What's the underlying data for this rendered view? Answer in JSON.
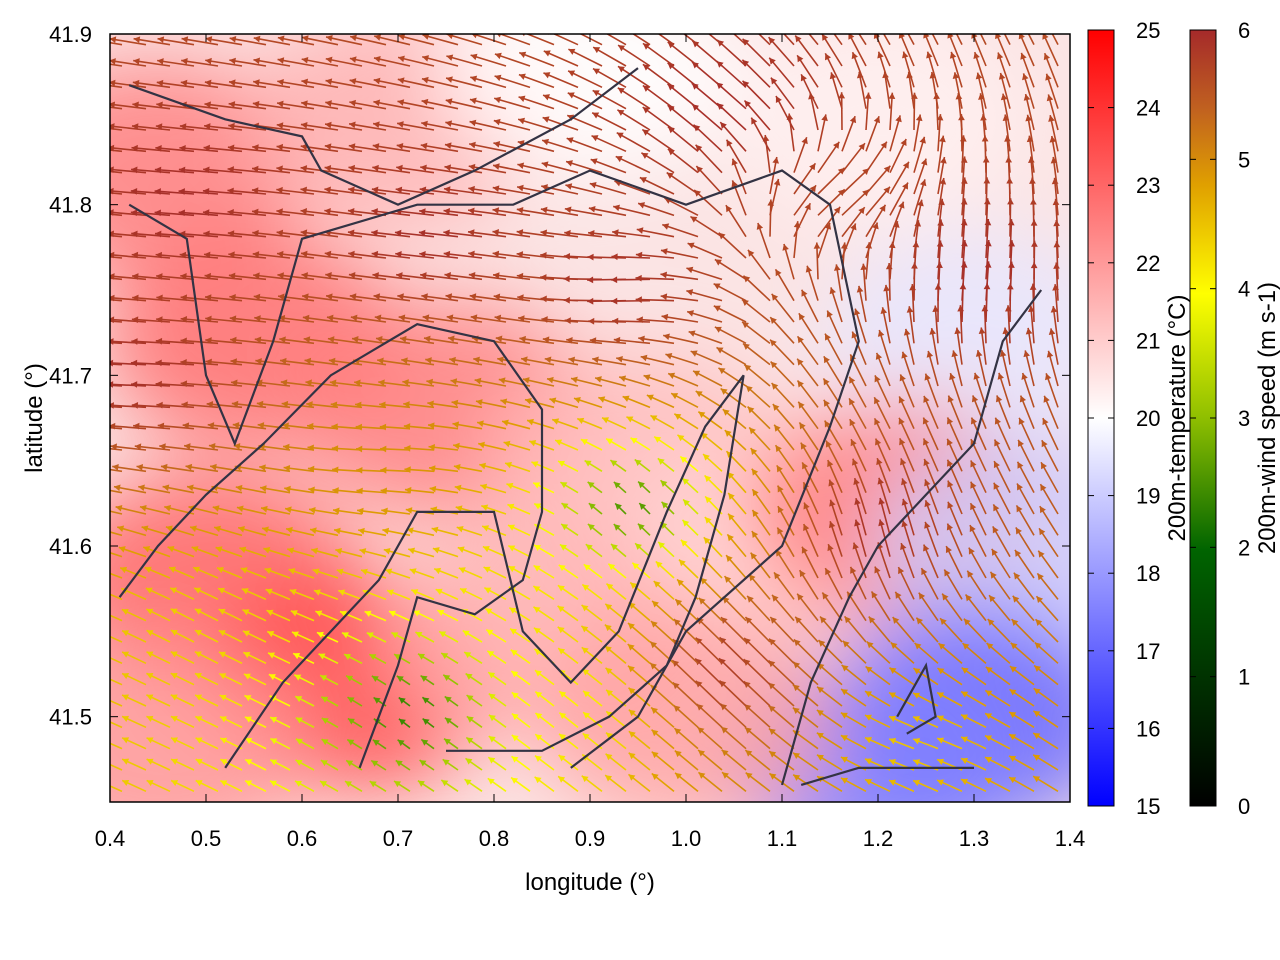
{
  "chart_data": {
    "type": "heatmap",
    "overlay": "wind-vector-field",
    "xlabel": "longitude (°)",
    "ylabel": "latitude (°)",
    "xlim": [
      0.4,
      1.4
    ],
    "ylim": [
      41.45,
      41.9
    ],
    "xticks": [
      "0.4",
      "0.5",
      "0.6",
      "0.7",
      "0.8",
      "0.9",
      "1.0",
      "1.1",
      "1.2",
      "1.3",
      "1.4"
    ],
    "yticks": [
      "41.5",
      "41.6",
      "41.7",
      "41.8",
      "41.9"
    ],
    "colorbar_temperature": {
      "label": "200m-temperature (°C)",
      "range": [
        15,
        25
      ],
      "ticks": [
        "15",
        "16",
        "17",
        "18",
        "19",
        "20",
        "21",
        "22",
        "23",
        "24",
        "25"
      ],
      "colors": [
        "#0000ff",
        "#ffffff",
        "#ff0000"
      ]
    },
    "colorbar_wind": {
      "label": "200m-wind speed (m s-1)",
      "range": [
        0,
        6
      ],
      "ticks": [
        "0",
        "1",
        "2",
        "3",
        "4",
        "5",
        "6"
      ],
      "colors": [
        "#000000",
        "#006400",
        "#8fbf00",
        "#ffff00",
        "#e0a000",
        "#c06020",
        "#a52a2a"
      ]
    },
    "temperature_regions": [
      {
        "lon": 0.45,
        "lat": 41.82,
        "t": 22.5
      },
      {
        "lon": 0.7,
        "lat": 41.85,
        "t": 21.5
      },
      {
        "lon": 0.9,
        "lat": 41.88,
        "t": 20.0
      },
      {
        "lon": 1.2,
        "lat": 41.85,
        "t": 20.3
      },
      {
        "lon": 1.3,
        "lat": 41.72,
        "t": 19.5
      },
      {
        "lon": 0.55,
        "lat": 41.72,
        "t": 22.8
      },
      {
        "lon": 0.75,
        "lat": 41.68,
        "t": 22.5
      },
      {
        "lon": 0.95,
        "lat": 41.65,
        "t": 21.3
      },
      {
        "lon": 1.1,
        "lat": 41.6,
        "t": 20.8
      },
      {
        "lon": 1.22,
        "lat": 41.62,
        "t": 22.5
      },
      {
        "lon": 1.35,
        "lat": 41.6,
        "t": 19.0
      },
      {
        "lon": 1.3,
        "lat": 41.5,
        "t": 17.0
      },
      {
        "lon": 1.2,
        "lat": 41.47,
        "t": 17.5
      },
      {
        "lon": 0.5,
        "lat": 41.58,
        "t": 23.0
      },
      {
        "lon": 0.65,
        "lat": 41.52,
        "t": 23.5
      },
      {
        "lon": 0.85,
        "lat": 41.55,
        "t": 21.5
      },
      {
        "lon": 1.0,
        "lat": 41.5,
        "t": 21.8
      },
      {
        "lon": 0.45,
        "lat": 41.48,
        "t": 22.0
      }
    ],
    "wind_regions": [
      {
        "lon": 0.5,
        "lat": 41.8,
        "u": -3.0,
        "v": 0.2,
        "speed": 6
      },
      {
        "lon": 0.75,
        "lat": 41.78,
        "u": -3.0,
        "v": 0.3,
        "speed": 6
      },
      {
        "lon": 0.95,
        "lat": 41.75,
        "u": -2.6,
        "v": -0.2,
        "speed": 6
      },
      {
        "lon": 1.15,
        "lat": 41.8,
        "u": 1.5,
        "v": 1.0,
        "speed": 5.5
      },
      {
        "lon": 1.3,
        "lat": 41.75,
        "u": 0.2,
        "v": 2.0,
        "speed": 6
      },
      {
        "lon": 1.05,
        "lat": 41.85,
        "u": -1.0,
        "v": 0.8,
        "speed": 6
      },
      {
        "lon": 0.7,
        "lat": 41.65,
        "u": -2.0,
        "v": 0.0,
        "speed": 4.2
      },
      {
        "lon": 0.95,
        "lat": 41.62,
        "u": -0.3,
        "v": 0.4,
        "speed": 1.0
      },
      {
        "lon": 0.72,
        "lat": 41.5,
        "u": -0.2,
        "v": 0.2,
        "speed": 1.0
      },
      {
        "lon": 0.5,
        "lat": 41.55,
        "u": -1.5,
        "v": 0.8,
        "speed": 3.5
      },
      {
        "lon": 1.2,
        "lat": 41.6,
        "u": -0.4,
        "v": 2.0,
        "speed": 6
      },
      {
        "lon": 1.05,
        "lat": 41.52,
        "u": -1.5,
        "v": 1.5,
        "speed": 6
      },
      {
        "lon": 1.25,
        "lat": 41.48,
        "u": -1.5,
        "v": 0.5,
        "speed": 3.5
      },
      {
        "lon": 0.9,
        "lat": 41.5,
        "u": -1.0,
        "v": 0.8,
        "speed": 3.0
      },
      {
        "lon": 0.45,
        "lat": 41.7,
        "u": -3.0,
        "v": 0.1,
        "speed": 6
      }
    ],
    "contours": [
      [
        [
          0.42,
          41.87
        ],
        [
          0.52,
          41.85
        ],
        [
          0.6,
          41.84
        ],
        [
          0.62,
          41.82
        ],
        [
          0.7,
          41.8
        ],
        [
          0.78,
          41.82
        ],
        [
          0.88,
          41.85
        ],
        [
          0.95,
          41.88
        ]
      ],
      [
        [
          0.42,
          41.8
        ],
        [
          0.48,
          41.78
        ],
        [
          0.5,
          41.7
        ],
        [
          0.53,
          41.66
        ],
        [
          0.57,
          41.72
        ],
        [
          0.6,
          41.78
        ],
        [
          0.72,
          41.8
        ],
        [
          0.82,
          41.8
        ],
        [
          0.9,
          41.82
        ],
        [
          1.0,
          41.8
        ],
        [
          1.1,
          41.82
        ],
        [
          1.15,
          41.8
        ],
        [
          1.18,
          41.72
        ],
        [
          1.15,
          41.67
        ],
        [
          1.1,
          41.6
        ],
        [
          1.0,
          41.55
        ],
        [
          0.95,
          41.5
        ],
        [
          0.88,
          41.47
        ]
      ],
      [
        [
          0.41,
          41.57
        ],
        [
          0.45,
          41.6
        ],
        [
          0.5,
          41.63
        ],
        [
          0.56,
          41.66
        ],
        [
          0.63,
          41.7
        ],
        [
          0.72,
          41.73
        ],
        [
          0.8,
          41.72
        ],
        [
          0.85,
          41.68
        ],
        [
          0.85,
          41.62
        ],
        [
          0.83,
          41.58
        ],
        [
          0.78,
          41.56
        ],
        [
          0.72,
          41.57
        ],
        [
          0.7,
          41.53
        ],
        [
          0.66,
          41.47
        ]
      ],
      [
        [
          0.52,
          41.47
        ],
        [
          0.58,
          41.52
        ],
        [
          0.63,
          41.55
        ],
        [
          0.68,
          41.58
        ],
        [
          0.72,
          41.62
        ],
        [
          0.8,
          41.62
        ],
        [
          0.83,
          41.55
        ],
        [
          0.88,
          41.52
        ],
        [
          0.93,
          41.55
        ],
        [
          0.98,
          41.62
        ],
        [
          1.02,
          41.67
        ],
        [
          1.06,
          41.7
        ],
        [
          1.04,
          41.63
        ],
        [
          1.01,
          41.57
        ],
        [
          0.98,
          41.53
        ],
        [
          0.92,
          41.5
        ],
        [
          0.85,
          41.48
        ],
        [
          0.75,
          41.48
        ]
      ],
      [
        [
          1.1,
          41.46
        ],
        [
          1.13,
          41.52
        ],
        [
          1.17,
          41.57
        ],
        [
          1.2,
          41.6
        ],
        [
          1.25,
          41.63
        ],
        [
          1.3,
          41.66
        ],
        [
          1.33,
          41.72
        ],
        [
          1.37,
          41.75
        ]
      ],
      [
        [
          1.12,
          41.46
        ],
        [
          1.18,
          41.47
        ],
        [
          1.25,
          41.47
        ],
        [
          1.3,
          41.47
        ]
      ],
      [
        [
          1.22,
          41.5
        ],
        [
          1.25,
          41.53
        ],
        [
          1.26,
          41.5
        ],
        [
          1.23,
          41.49
        ]
      ]
    ]
  }
}
